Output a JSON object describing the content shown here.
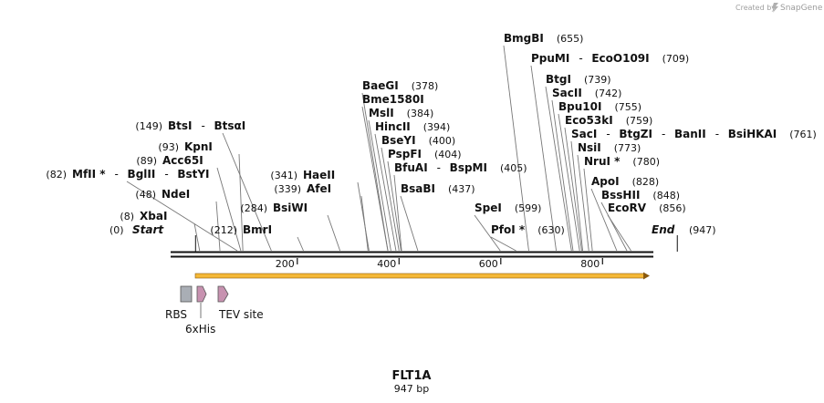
{
  "credit": {
    "prefix": "Created by",
    "brand": "SnapGene"
  },
  "sequence": {
    "name": "FLT1A",
    "length_label": "947 bp",
    "length": 947
  },
  "ends": {
    "start_label": "Start",
    "start_pos": "(0)",
    "end_label": "End",
    "end_pos": "(947)"
  },
  "ruler": {
    "ticks": [
      200,
      400,
      600,
      800
    ]
  },
  "sites": [
    {
      "enzymes": [
        "XbaI"
      ],
      "pos": 8,
      "pos_label": "(8)"
    },
    {
      "enzymes": [
        "NdeI"
      ],
      "pos": 48,
      "pos_label": "(48)"
    },
    {
      "enzymes": [
        "MfII *",
        "BglII",
        "BstYI"
      ],
      "pos": 82,
      "pos_label": "(82)"
    },
    {
      "enzymes": [
        "Acc65I"
      ],
      "pos": 89,
      "pos_label": "(89)"
    },
    {
      "enzymes": [
        "KpnI"
      ],
      "pos": 93,
      "pos_label": "(93)"
    },
    {
      "enzymes": [
        "BtsI",
        "BtsαI"
      ],
      "pos": 149,
      "pos_label": "(149)"
    },
    {
      "enzymes": [
        "BmrI"
      ],
      "pos": 212,
      "pos_label": "(212)"
    },
    {
      "enzymes": [
        "BsiWI"
      ],
      "pos": 284,
      "pos_label": "(284)"
    },
    {
      "enzymes": [
        "AfeI"
      ],
      "pos": 339,
      "pos_label": "(339)"
    },
    {
      "enzymes": [
        "HaeII"
      ],
      "pos": 341,
      "pos_label": "(341)"
    },
    {
      "enzymes": [
        "BaeGI"
      ],
      "pos": 378,
      "pos_label": "(378)"
    },
    {
      "enzymes": [
        "Bme1580I"
      ],
      "pos": 378,
      "pos_label": ""
    },
    {
      "enzymes": [
        "MslI"
      ],
      "pos": 384,
      "pos_label": "(384)"
    },
    {
      "enzymes": [
        "HincII"
      ],
      "pos": 394,
      "pos_label": "(394)"
    },
    {
      "enzymes": [
        "BseYI"
      ],
      "pos": 400,
      "pos_label": "(400)"
    },
    {
      "enzymes": [
        "PspFI"
      ],
      "pos": 404,
      "pos_label": "(404)"
    },
    {
      "enzymes": [
        "BfuAI",
        "BspMI"
      ],
      "pos": 405,
      "pos_label": "(405)"
    },
    {
      "enzymes": [
        "BsaBI"
      ],
      "pos": 437,
      "pos_label": "(437)"
    },
    {
      "enzymes": [
        "SpeI"
      ],
      "pos": 599,
      "pos_label": "(599)"
    },
    {
      "enzymes": [
        "PfoI *"
      ],
      "pos": 630,
      "pos_label": "(630)"
    },
    {
      "enzymes": [
        "BmgBI"
      ],
      "pos": 655,
      "pos_label": "(655)"
    },
    {
      "enzymes": [
        "PpuMI",
        "EcoO109I"
      ],
      "pos": 709,
      "pos_label": "(709)"
    },
    {
      "enzymes": [
        "BtgI"
      ],
      "pos": 739,
      "pos_label": "(739)"
    },
    {
      "enzymes": [
        "SacII"
      ],
      "pos": 742,
      "pos_label": "(742)"
    },
    {
      "enzymes": [
        "Bpu10I"
      ],
      "pos": 755,
      "pos_label": "(755)"
    },
    {
      "enzymes": [
        "Eco53kI"
      ],
      "pos": 759,
      "pos_label": "(759)"
    },
    {
      "enzymes": [
        "SacI",
        "BtgZI",
        "BanII",
        "BsiHKAI"
      ],
      "pos": 761,
      "pos_label": "(761)"
    },
    {
      "enzymes": [
        "NsiI"
      ],
      "pos": 773,
      "pos_label": "(773)"
    },
    {
      "enzymes": [
        "NruI *"
      ],
      "pos": 780,
      "pos_label": "(780)"
    },
    {
      "enzymes": [
        "ApoI"
      ],
      "pos": 828,
      "pos_label": "(828)"
    },
    {
      "enzymes": [
        "BssHII"
      ],
      "pos": 848,
      "pos_label": "(848)"
    },
    {
      "enzymes": [
        "EcoRV"
      ],
      "pos": 856,
      "pos_label": "(856)"
    }
  ],
  "features": [
    {
      "name": "RBS",
      "type": "rbs",
      "color": "#a9aeb5"
    },
    {
      "name": "6xHis",
      "type": "cds",
      "color": "#c792b0"
    },
    {
      "name": "TEV site",
      "type": "cds",
      "color": "#c792b0"
    }
  ],
  "orf": {
    "color": "#f5b836"
  },
  "colors": {
    "line": "#111111",
    "leader": "#777777"
  }
}
